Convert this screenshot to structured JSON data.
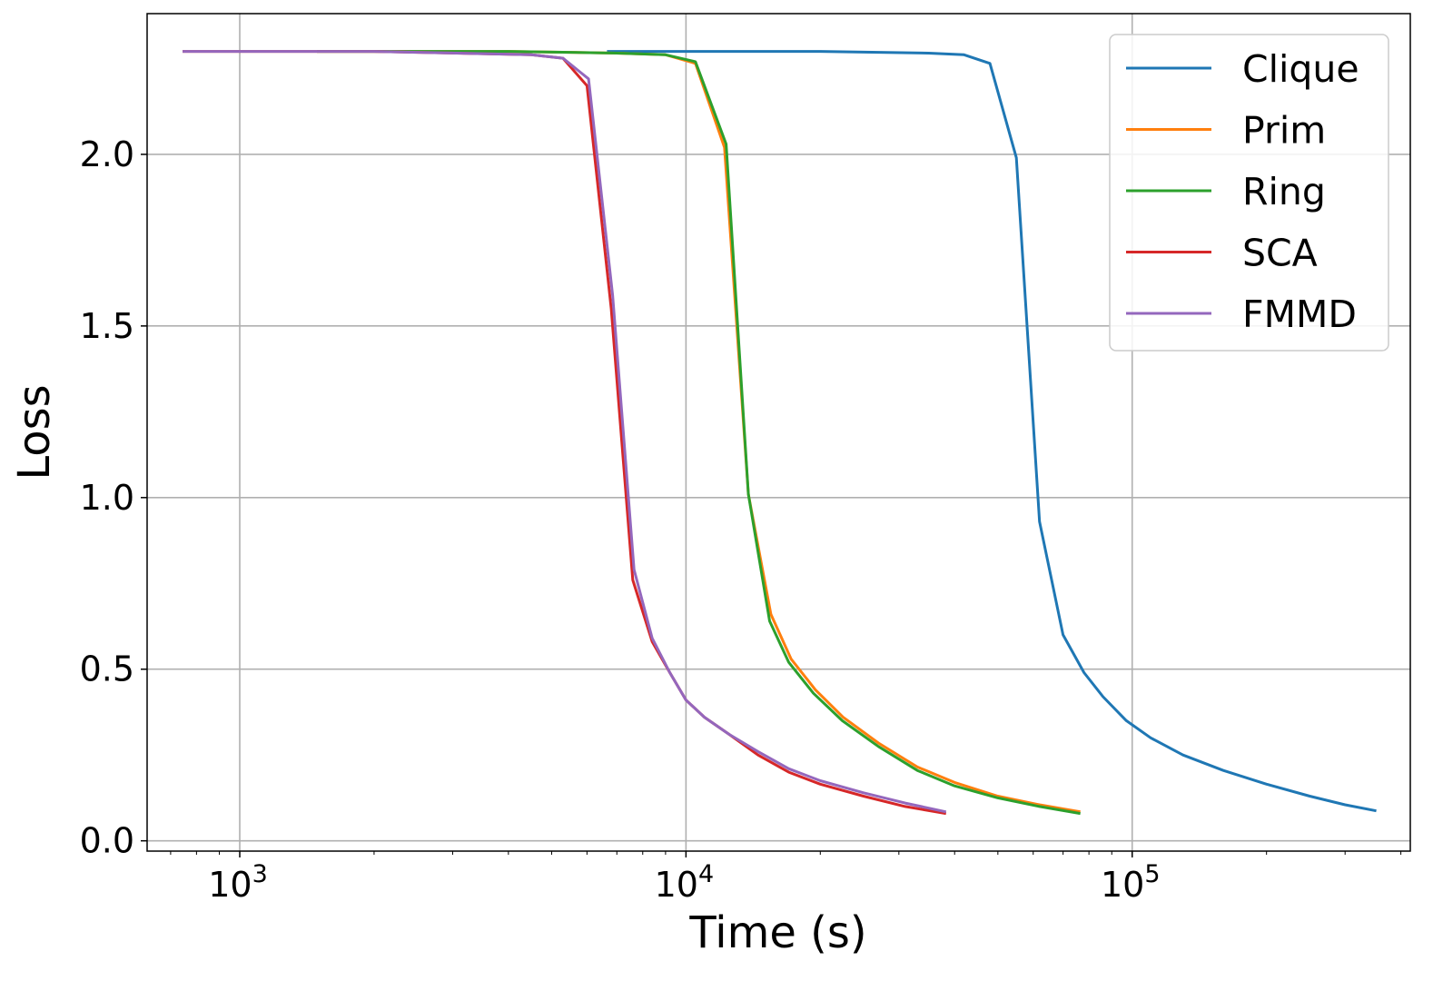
{
  "chart_data": {
    "type": "line",
    "title": "",
    "xlabel": "Time (s)",
    "ylabel": "Loss",
    "x_scale": "log",
    "xlim": [
      620,
      420000
    ],
    "ylim": [
      -0.03,
      2.41
    ],
    "x_major_ticks": [
      {
        "value": 1000,
        "base": "10",
        "exp": "3"
      },
      {
        "value": 10000,
        "base": "10",
        "exp": "4"
      },
      {
        "value": 100000,
        "base": "10",
        "exp": "5"
      }
    ],
    "y_ticks": [
      {
        "value": 0.0,
        "label": "0.0"
      },
      {
        "value": 0.5,
        "label": "0.5"
      },
      {
        "value": 1.0,
        "label": "1.0"
      },
      {
        "value": 1.5,
        "label": "1.5"
      },
      {
        "value": 2.0,
        "label": "2.0"
      }
    ],
    "grid": true,
    "legend_position": "top-right",
    "series": [
      {
        "name": "Clique",
        "color": "#1f77b4",
        "points": [
          [
            6700,
            2.3
          ],
          [
            10000,
            2.3
          ],
          [
            20000,
            2.3
          ],
          [
            35000,
            2.295
          ],
          [
            42000,
            2.29
          ],
          [
            48000,
            2.265
          ],
          [
            55000,
            1.99
          ],
          [
            62000,
            0.93
          ],
          [
            70000,
            0.6
          ],
          [
            78000,
            0.49
          ],
          [
            86000,
            0.42
          ],
          [
            97000,
            0.35
          ],
          [
            110000,
            0.3
          ],
          [
            130000,
            0.25
          ],
          [
            160000,
            0.205
          ],
          [
            200000,
            0.165
          ],
          [
            250000,
            0.13
          ],
          [
            300000,
            0.105
          ],
          [
            350000,
            0.088
          ]
        ]
      },
      {
        "name": "Prim",
        "color": "#ff7f0e",
        "points": [
          [
            1500,
            2.3
          ],
          [
            4000,
            2.3
          ],
          [
            7000,
            2.295
          ],
          [
            9000,
            2.29
          ],
          [
            10500,
            2.265
          ],
          [
            12200,
            2.02
          ],
          [
            13800,
            1.01
          ],
          [
            15500,
            0.66
          ],
          [
            17200,
            0.53
          ],
          [
            19500,
            0.44
          ],
          [
            22500,
            0.36
          ],
          [
            27000,
            0.285
          ],
          [
            33000,
            0.215
          ],
          [
            40000,
            0.17
          ],
          [
            50000,
            0.13
          ],
          [
            62000,
            0.105
          ],
          [
            76000,
            0.085
          ]
        ]
      },
      {
        "name": "Ring",
        "color": "#2ca02c",
        "points": [
          [
            1500,
            2.3
          ],
          [
            4000,
            2.3
          ],
          [
            7000,
            2.295
          ],
          [
            9000,
            2.29
          ],
          [
            10500,
            2.27
          ],
          [
            12300,
            2.03
          ],
          [
            13800,
            1.01
          ],
          [
            15400,
            0.64
          ],
          [
            17000,
            0.52
          ],
          [
            19300,
            0.43
          ],
          [
            22400,
            0.35
          ],
          [
            27000,
            0.275
          ],
          [
            33000,
            0.205
          ],
          [
            40000,
            0.16
          ],
          [
            50000,
            0.125
          ],
          [
            62000,
            0.1
          ],
          [
            76000,
            0.08
          ]
        ]
      },
      {
        "name": "SCA",
        "color": "#d62728",
        "points": [
          [
            750,
            2.3
          ],
          [
            2000,
            2.3
          ],
          [
            4500,
            2.29
          ],
          [
            5300,
            2.28
          ],
          [
            6000,
            2.2
          ],
          [
            6800,
            1.55
          ],
          [
            7600,
            0.76
          ],
          [
            8400,
            0.58
          ],
          [
            9200,
            0.49
          ],
          [
            10000,
            0.41
          ],
          [
            11000,
            0.36
          ],
          [
            12500,
            0.31
          ],
          [
            14500,
            0.25
          ],
          [
            17000,
            0.2
          ],
          [
            20000,
            0.165
          ],
          [
            25000,
            0.13
          ],
          [
            31000,
            0.1
          ],
          [
            38000,
            0.08
          ]
        ]
      },
      {
        "name": "FMMD",
        "color": "#9467bd",
        "points": [
          [
            750,
            2.3
          ],
          [
            2000,
            2.3
          ],
          [
            4500,
            2.29
          ],
          [
            5300,
            2.28
          ],
          [
            6050,
            2.22
          ],
          [
            6850,
            1.59
          ],
          [
            7650,
            0.79
          ],
          [
            8400,
            0.59
          ],
          [
            9200,
            0.49
          ],
          [
            10000,
            0.41
          ],
          [
            11000,
            0.36
          ],
          [
            12500,
            0.31
          ],
          [
            14500,
            0.26
          ],
          [
            17000,
            0.21
          ],
          [
            20000,
            0.175
          ],
          [
            25000,
            0.14
          ],
          [
            31000,
            0.11
          ],
          [
            38000,
            0.085
          ]
        ]
      }
    ]
  }
}
